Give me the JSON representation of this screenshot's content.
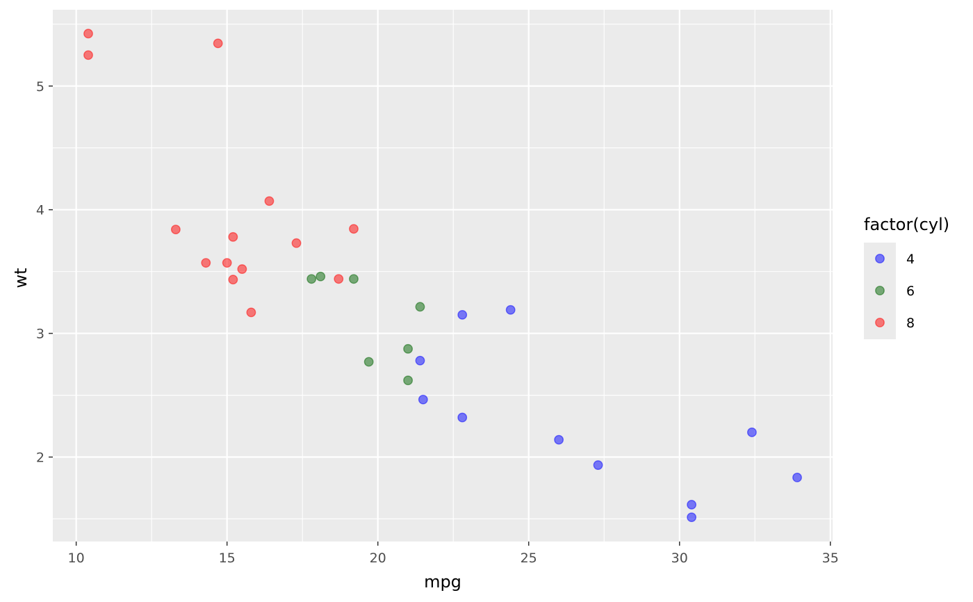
{
  "chart_data": {
    "type": "scatter",
    "title": "",
    "xlabel": "mpg",
    "ylabel": "wt",
    "xlim": [
      9.225,
      35.075
    ],
    "ylim": [
      1.31705,
      5.61695
    ],
    "x_ticks": [
      10,
      15,
      20,
      25,
      30,
      35
    ],
    "y_ticks": [
      2,
      3,
      4,
      5
    ],
    "x_tick_labels": [
      "10",
      "15",
      "20",
      "25",
      "30",
      "35"
    ],
    "y_tick_labels": [
      "2",
      "3",
      "4",
      "5"
    ],
    "grid": true,
    "panel_background": "#ebebeb",
    "legend": {
      "title": "factor(cyl)",
      "position": "right",
      "labels": [
        "4",
        "6",
        "8"
      ]
    },
    "series": [
      {
        "name": "4",
        "color": "#0000ff",
        "points": [
          [
            22.8,
            2.32
          ],
          [
            24.4,
            3.19
          ],
          [
            22.8,
            3.15
          ],
          [
            32.4,
            2.2
          ],
          [
            30.4,
            1.615
          ],
          [
            33.9,
            1.835
          ],
          [
            21.5,
            2.465
          ],
          [
            27.3,
            1.935
          ],
          [
            26.0,
            2.14
          ],
          [
            30.4,
            1.513
          ],
          [
            21.4,
            2.78
          ]
        ]
      },
      {
        "name": "6",
        "color": "#006400",
        "points": [
          [
            21.0,
            2.62
          ],
          [
            21.0,
            2.875
          ],
          [
            21.4,
            3.215
          ],
          [
            18.1,
            3.46
          ],
          [
            19.2,
            3.44
          ],
          [
            17.8,
            3.44
          ],
          [
            19.7,
            2.77
          ]
        ]
      },
      {
        "name": "8",
        "color": "#ff0000",
        "points": [
          [
            18.7,
            3.44
          ],
          [
            14.3,
            3.57
          ],
          [
            16.4,
            4.07
          ],
          [
            17.3,
            3.73
          ],
          [
            15.2,
            3.78
          ],
          [
            10.4,
            5.25
          ],
          [
            10.4,
            5.424
          ],
          [
            14.7,
            5.345
          ],
          [
            15.5,
            3.52
          ],
          [
            15.2,
            3.435
          ],
          [
            13.3,
            3.84
          ],
          [
            19.2,
            3.845
          ],
          [
            15.8,
            3.17
          ],
          [
            15.0,
            3.57
          ]
        ]
      }
    ]
  }
}
